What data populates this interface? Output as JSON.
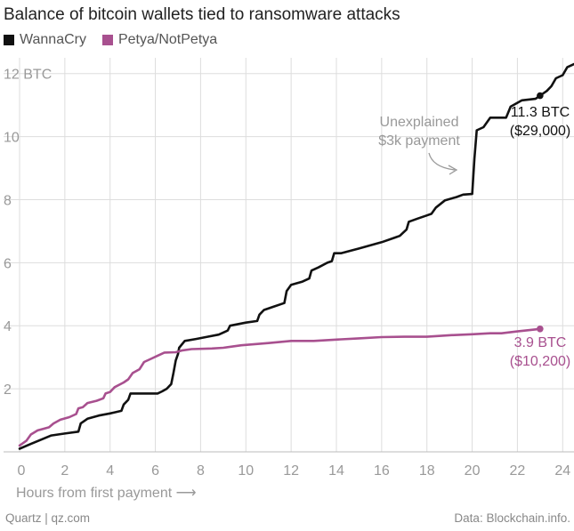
{
  "title": "Balance of bitcoin wallets tied to ransomware attacks",
  "source_left": "Quartz | qz.com",
  "source_right": "Data: Blockchain.info.",
  "chart_data": {
    "type": "line",
    "title": "Balance of bitcoin wallets tied to ransomware attacks",
    "xlabel": "Hours from first payment",
    "xlabel_arrow": "⟶",
    "ylabel": "",
    "xlim": [
      0,
      24.5
    ],
    "ylim": [
      0,
      12.5
    ],
    "x_ticks": [
      0,
      2,
      4,
      6,
      8,
      10,
      12,
      14,
      16,
      18,
      20,
      22,
      24
    ],
    "x_tick_labels": [
      "0",
      "2",
      "4",
      "6",
      "8",
      "10",
      "12",
      "14",
      "16",
      "18",
      "20",
      "22",
      "24"
    ],
    "y_ticks": [
      2,
      4,
      6,
      8,
      10,
      12
    ],
    "y_tick_labels": [
      "2",
      "4",
      "6",
      "8",
      "10",
      "12 BTC"
    ],
    "colors": {
      "wannacry": "#111111",
      "petya": "#a8508f",
      "annotation": "#999999",
      "grid": "#dddddd"
    },
    "series": [
      {
        "name": "WannaCry",
        "color": "#111111",
        "points": [
          [
            0,
            0.1
          ],
          [
            0.5,
            0.25
          ],
          [
            1,
            0.4
          ],
          [
            1.4,
            0.52
          ],
          [
            2,
            0.58
          ],
          [
            2.6,
            0.64
          ],
          [
            2.7,
            0.9
          ],
          [
            3,
            1.05
          ],
          [
            3.5,
            1.15
          ],
          [
            4,
            1.22
          ],
          [
            4.5,
            1.3
          ],
          [
            4.6,
            1.5
          ],
          [
            4.8,
            1.65
          ],
          [
            4.9,
            1.85
          ],
          [
            5.5,
            1.85
          ],
          [
            6.1,
            1.85
          ],
          [
            6.3,
            1.92
          ],
          [
            6.5,
            2.0
          ],
          [
            6.7,
            2.15
          ],
          [
            6.8,
            2.5
          ],
          [
            6.9,
            2.9
          ],
          [
            7,
            3.1
          ],
          [
            7.05,
            3.3
          ],
          [
            7.3,
            3.52
          ],
          [
            7.8,
            3.58
          ],
          [
            8.3,
            3.65
          ],
          [
            8.8,
            3.72
          ],
          [
            9.2,
            3.85
          ],
          [
            9.3,
            4.0
          ],
          [
            10,
            4.1
          ],
          [
            10.5,
            4.15
          ],
          [
            10.6,
            4.35
          ],
          [
            10.8,
            4.5
          ],
          [
            11.2,
            4.6
          ],
          [
            11.7,
            4.72
          ],
          [
            11.8,
            5.1
          ],
          [
            12,
            5.3
          ],
          [
            12.5,
            5.4
          ],
          [
            12.8,
            5.5
          ],
          [
            12.9,
            5.75
          ],
          [
            13.2,
            5.85
          ],
          [
            13.6,
            6.0
          ],
          [
            13.8,
            6.05
          ],
          [
            13.9,
            6.3
          ],
          [
            14.2,
            6.3
          ],
          [
            15,
            6.45
          ],
          [
            16,
            6.65
          ],
          [
            16.6,
            6.8
          ],
          [
            16.8,
            6.85
          ],
          [
            17.1,
            7.05
          ],
          [
            17.2,
            7.3
          ],
          [
            17.6,
            7.4
          ],
          [
            18,
            7.5
          ],
          [
            18.2,
            7.55
          ],
          [
            18.4,
            7.75
          ],
          [
            18.8,
            7.98
          ],
          [
            19.3,
            8.08
          ],
          [
            19.6,
            8.16
          ],
          [
            20,
            8.18
          ],
          [
            20.1,
            9.3
          ],
          [
            20.2,
            10.2
          ],
          [
            20.5,
            10.3
          ],
          [
            20.8,
            10.6
          ],
          [
            21.5,
            10.6
          ],
          [
            21.7,
            10.95
          ],
          [
            22.2,
            11.15
          ],
          [
            22.8,
            11.2
          ],
          [
            23,
            11.3
          ],
          [
            23.3,
            11.45
          ],
          [
            23.5,
            11.6
          ],
          [
            23.7,
            11.85
          ],
          [
            24,
            11.95
          ],
          [
            24.2,
            12.2
          ],
          [
            24.5,
            12.3
          ]
        ]
      },
      {
        "name": "Petya/NotPetya",
        "color": "#a8508f",
        "points": [
          [
            0,
            0.2
          ],
          [
            0.3,
            0.35
          ],
          [
            0.5,
            0.55
          ],
          [
            0.8,
            0.68
          ],
          [
            1,
            0.72
          ],
          [
            1.3,
            0.78
          ],
          [
            1.5,
            0.9
          ],
          [
            1.8,
            1.02
          ],
          [
            2.2,
            1.1
          ],
          [
            2.5,
            1.2
          ],
          [
            2.6,
            1.38
          ],
          [
            2.8,
            1.42
          ],
          [
            3,
            1.55
          ],
          [
            3.4,
            1.62
          ],
          [
            3.7,
            1.7
          ],
          [
            3.8,
            1.85
          ],
          [
            4,
            1.9
          ],
          [
            4.2,
            2.05
          ],
          [
            4.6,
            2.2
          ],
          [
            4.8,
            2.3
          ],
          [
            5,
            2.5
          ],
          [
            5.3,
            2.62
          ],
          [
            5.5,
            2.85
          ],
          [
            5.8,
            2.95
          ],
          [
            6.1,
            3.05
          ],
          [
            6.4,
            3.15
          ],
          [
            6.9,
            3.16
          ],
          [
            7.2,
            3.22
          ],
          [
            7.6,
            3.26
          ],
          [
            8.5,
            3.28
          ],
          [
            9,
            3.3
          ],
          [
            9.8,
            3.38
          ],
          [
            11,
            3.45
          ],
          [
            12,
            3.52
          ],
          [
            13,
            3.52
          ],
          [
            14,
            3.56
          ],
          [
            15,
            3.6
          ],
          [
            16,
            3.64
          ],
          [
            17,
            3.65
          ],
          [
            18,
            3.65
          ],
          [
            19,
            3.7
          ],
          [
            20,
            3.73
          ],
          [
            20.8,
            3.76
          ],
          [
            21.3,
            3.76
          ],
          [
            22,
            3.82
          ],
          [
            23,
            3.9
          ]
        ]
      }
    ],
    "annotations": [
      {
        "id": "wannacry_end",
        "x": 23,
        "y": 11.3,
        "lines": [
          "11.3 BTC",
          "($29,000)"
        ],
        "color": "#111111"
      },
      {
        "id": "petya_end",
        "x": 23,
        "y": 3.9,
        "lines": [
          "3.9 BTC",
          "($10,200)"
        ],
        "color": "#a8508f"
      },
      {
        "id": "unexplained",
        "lines": [
          "Unexplained",
          "$3k payment"
        ],
        "color": "#999999"
      }
    ]
  },
  "legend": [
    {
      "label": "WannaCry",
      "color": "#111111"
    },
    {
      "label": "Petya/NotPetya",
      "color": "#a8508f"
    }
  ]
}
